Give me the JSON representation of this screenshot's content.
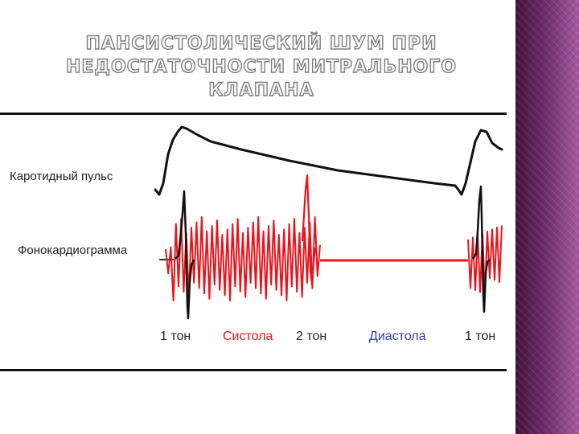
{
  "slide": {
    "title_lines": [
      "ПАНСИСТОЛИЧЕСКИЙ ШУМ ПРИ",
      "НЕДОСТАТОЧНОСТИ МИТРАЛЬНОГО КЛАПАНА"
    ]
  },
  "figure": {
    "labels": {
      "carotid_pulse": "Каротидный пульс",
      "phonocardiogram": "Фонокардиограмма"
    },
    "phase_labels": {
      "tone1_start": "1 тон",
      "systole": "Систола",
      "tone2": "2 тон",
      "diastole": "Диастола",
      "tone1_end": "1 тон"
    }
  },
  "colors": {
    "murmur": "#e8141c",
    "heart_tones": "#111111",
    "systole_label": "#e8141c",
    "diastole_label": "#2d3fa8",
    "side_panel": "#7a3576"
  }
}
